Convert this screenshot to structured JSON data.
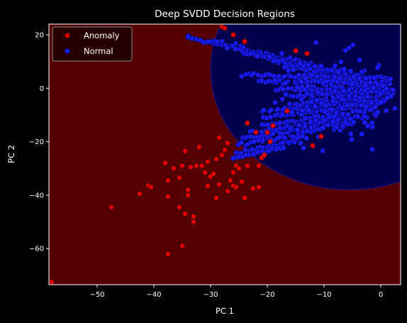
{
  "chart_data": {
    "type": "scatter",
    "title": "Deep SVDD Decision Regions",
    "xlabel": "PC 1",
    "ylabel": "PC 2",
    "xlim": [
      -58.5,
      3.5
    ],
    "ylim": [
      -73.5,
      24.0
    ],
    "xticks": [
      -50,
      -40,
      -30,
      -20,
      -10,
      0
    ],
    "yticks": [
      -60,
      -40,
      -20,
      0,
      20
    ],
    "grid": false,
    "legend_position": "top-left",
    "colors": {
      "anomaly_region": "#550000",
      "normal_region": "#00004f",
      "anomaly_point": "#e00000",
      "normal_point": "#1a1aff",
      "point_edge": "#2a0000"
    },
    "normal_region_ellipse": {
      "cx": -5.5,
      "cy": 7.0,
      "rx": 24.5,
      "ry": 45.0
    },
    "series": [
      {
        "name": "Anomaly",
        "points": [
          [
            -58,
            -72.5
          ],
          [
            -47.5,
            -44.5
          ],
          [
            -42.5,
            -39.5
          ],
          [
            -41,
            -36.5
          ],
          [
            -40.5,
            -37
          ],
          [
            -38,
            -28
          ],
          [
            -37.5,
            -34.5
          ],
          [
            -37.5,
            -40.5
          ],
          [
            -37.5,
            -62
          ],
          [
            -36.5,
            -30
          ],
          [
            -35.5,
            -44.5
          ],
          [
            -35.5,
            -33.5
          ],
          [
            -35,
            -29
          ],
          [
            -35,
            -59
          ],
          [
            -34.5,
            -23.5
          ],
          [
            -34.5,
            -47
          ],
          [
            -34,
            -38
          ],
          [
            -34,
            -40
          ],
          [
            -33.5,
            -29.5
          ],
          [
            -33,
            -48
          ],
          [
            -33,
            -50
          ],
          [
            -32.5,
            -29
          ],
          [
            -32,
            -22
          ],
          [
            -31.5,
            -29
          ],
          [
            -31,
            -31.5
          ],
          [
            -30.5,
            -27.5
          ],
          [
            -30.5,
            -36.5
          ],
          [
            -30,
            -33
          ],
          [
            -29.5,
            -32
          ],
          [
            -29,
            -26.5
          ],
          [
            -29,
            -41
          ],
          [
            -28.5,
            -36
          ],
          [
            -28.5,
            -18.5
          ],
          [
            -28,
            -25
          ],
          [
            -28,
            23
          ],
          [
            -27.5,
            22.5
          ],
          [
            -27.5,
            -23
          ],
          [
            -27,
            -20.5
          ],
          [
            -27,
            -38.5
          ],
          [
            -26.5,
            -34.5
          ],
          [
            -26,
            -31.5
          ],
          [
            -26,
            -36.5
          ],
          [
            -25.5,
            -37
          ],
          [
            -25.5,
            -29
          ],
          [
            -25,
            -30
          ],
          [
            -24.5,
            -35
          ],
          [
            -24,
            -41
          ],
          [
            -23.5,
            -29
          ],
          [
            -22.5,
            -37.5
          ],
          [
            -22,
            -16.5
          ],
          [
            -21.5,
            -37
          ],
          [
            -21.5,
            -29
          ],
          [
            -21,
            -26
          ],
          [
            -20.5,
            -25
          ],
          [
            -20,
            -16.5
          ],
          [
            -19.5,
            -20
          ],
          [
            -19,
            -14
          ],
          [
            -26,
            20
          ],
          [
            -24,
            17.5
          ],
          [
            -15,
            14
          ],
          [
            -13,
            13
          ],
          [
            -16.5,
            -8.5
          ],
          [
            -12,
            -21.5
          ],
          [
            -10.5,
            -18
          ],
          [
            -23.5,
            -13
          ]
        ]
      },
      {
        "name": "Normal",
        "lines": [
          {
            "from": [
              -34.5,
              19.5
            ],
            "to": [
              0.5,
              2.5
            ],
            "n": 55
          },
          {
            "from": [
              -30,
              18.0
            ],
            "to": [
              1.5,
              1.0
            ],
            "n": 50
          },
          {
            "from": [
              -27,
              15.5
            ],
            "to": [
              2.0,
              0.0
            ],
            "n": 45
          },
          {
            "from": [
              -24,
              13.5
            ],
            "to": [
              2.5,
              -1.5
            ],
            "n": 45
          },
          {
            "from": [
              -20,
              11.5
            ],
            "to": [
              2.0,
              -2.5
            ],
            "n": 40
          },
          {
            "from": [
              -17,
              9.0
            ],
            "to": [
              2.5,
              -1.0
            ],
            "n": 35
          },
          {
            "from": [
              -24.5,
              5.0
            ],
            "to": [
              1.5,
              4.0
            ],
            "n": 45
          },
          {
            "from": [
              -21.5,
              2.5
            ],
            "to": [
              1.5,
              2.5
            ],
            "n": 40
          },
          {
            "from": [
              -18.5,
              -0.5
            ],
            "to": [
              1.0,
              -0.5
            ],
            "n": 35
          },
          {
            "from": [
              -16.5,
              -3.0
            ],
            "to": [
              0.5,
              -1.0
            ],
            "n": 30
          },
          {
            "from": [
              -15,
              -6.0
            ],
            "to": [
              0.5,
              -3.0
            ],
            "n": 28
          },
          {
            "from": [
              -21,
              -8.5
            ],
            "to": [
              0.5,
              -4.5
            ],
            "n": 36
          },
          {
            "from": [
              -20.5,
              -11.0
            ],
            "to": [
              0.0,
              -5.5
            ],
            "n": 36
          },
          {
            "from": [
              -21,
              -14.0
            ],
            "to": [
              -2.0,
              -8.0
            ],
            "n": 34
          },
          {
            "from": [
              -23,
              -16.5
            ],
            "to": [
              -4.0,
              -10.5
            ],
            "n": 34
          },
          {
            "from": [
              -24.5,
              -19.0
            ],
            "to": [
              -7.0,
              -13.0
            ],
            "n": 32
          },
          {
            "from": [
              -25,
              -21.5
            ],
            "to": [
              -10.0,
              -15.0
            ],
            "n": 28
          },
          {
            "from": [
              -25.5,
              -24.0
            ],
            "to": [
              -13.0,
              -18.5
            ],
            "n": 24
          },
          {
            "from": [
              -26,
              -26.0
            ],
            "to": [
              -17.0,
              -22.0
            ],
            "n": 18
          },
          {
            "from": [
              -14,
              9.0
            ],
            "to": [
              0.5,
              1.0
            ],
            "n": 28
          }
        ],
        "cluster": {
          "cx": -8.5,
          "cy": -4.0,
          "sx": 4.5,
          "sy": 7.0,
          "n": 260
        }
      }
    ]
  }
}
